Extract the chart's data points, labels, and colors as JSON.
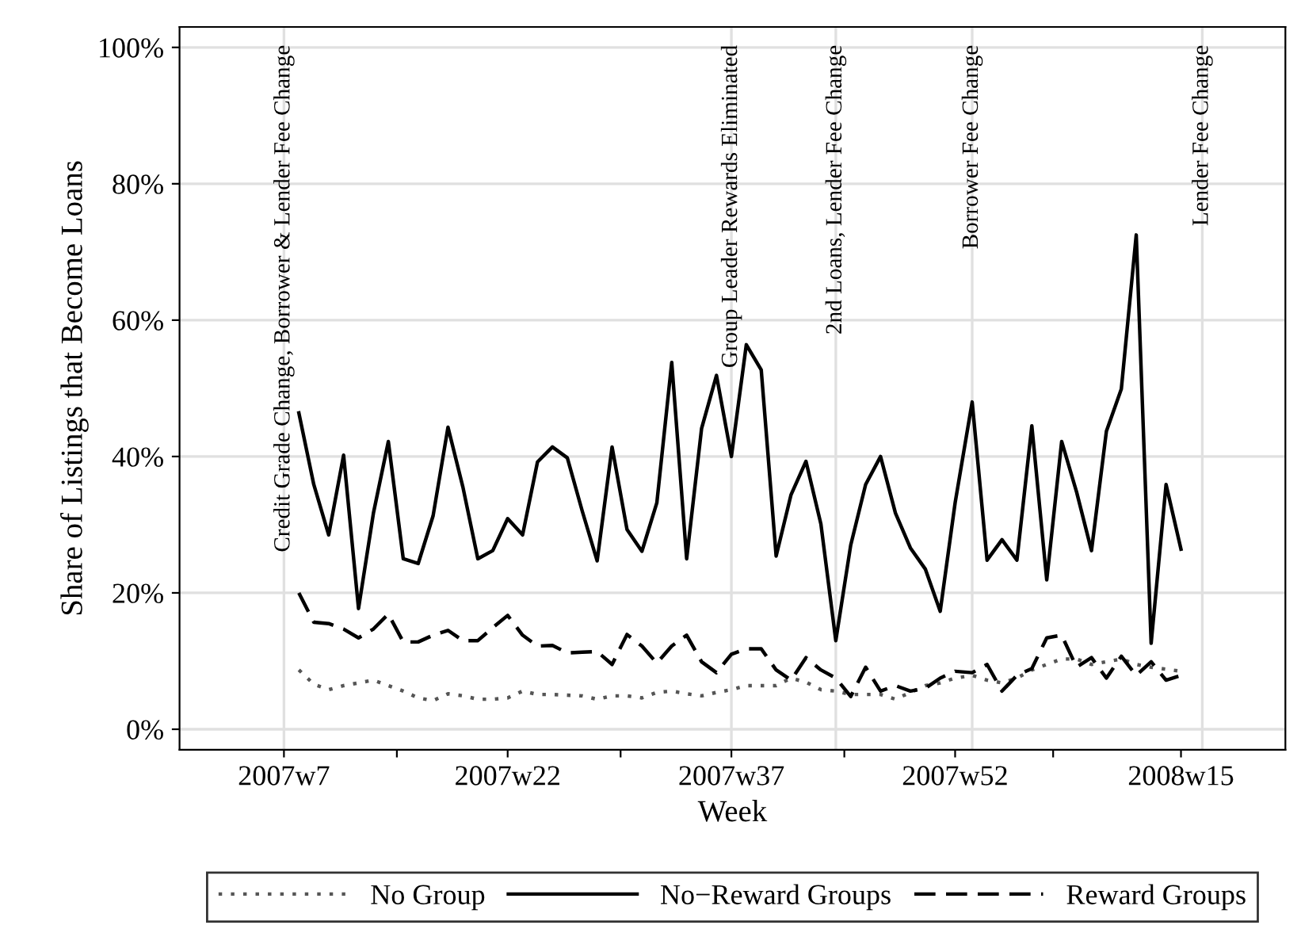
{
  "chart_data": {
    "type": "line",
    "xlabel": "Week",
    "ylabel": "Share of Listings that Become Loans",
    "x": [
      "2007-02-19",
      "2007-02-26",
      "2007-03-05",
      "2007-03-12",
      "2007-03-19",
      "2007-03-26",
      "2007-04-02",
      "2007-04-09",
      "2007-04-16",
      "2007-04-23",
      "2007-04-30",
      "2007-05-07",
      "2007-05-14",
      "2007-05-21",
      "2007-05-28",
      "2007-06-04",
      "2007-06-11",
      "2007-06-18",
      "2007-06-25",
      "2007-07-02",
      "2007-07-09",
      "2007-07-16",
      "2007-07-23",
      "2007-07-30",
      "2007-08-06",
      "2007-08-13",
      "2007-08-20",
      "2007-08-27",
      "2007-09-03",
      "2007-09-10",
      "2007-09-17",
      "2007-09-24",
      "2007-10-01",
      "2007-10-08",
      "2007-10-15",
      "2007-10-22",
      "2007-10-29",
      "2007-11-05",
      "2007-11-12",
      "2007-11-19",
      "2007-11-26",
      "2007-12-03",
      "2007-12-10",
      "2007-12-17",
      "2007-12-24",
      "2008-01-01",
      "2008-01-08",
      "2008-01-15",
      "2008-01-22",
      "2008-01-29",
      "2008-02-05",
      "2008-02-12",
      "2008-02-19",
      "2008-02-26",
      "2008-03-04",
      "2008-03-11",
      "2008-03-18",
      "2008-03-25",
      "2008-04-01",
      "2008-04-08"
    ],
    "series": [
      {
        "name": "No Group",
        "color": "#555555",
        "line_style": "dotted",
        "values": [
          8.7,
          6.6,
          5.8,
          6.4,
          6.8,
          7.2,
          6.4,
          5.6,
          4.6,
          4.2,
          5.2,
          4.9,
          4.4,
          4.4,
          4.6,
          5.6,
          5.1,
          5.1,
          5.0,
          4.9,
          4.4,
          4.9,
          4.9,
          4.6,
          5.4,
          5.6,
          5.2,
          4.9,
          5.4,
          5.8,
          6.4,
          6.4,
          6.4,
          7.5,
          6.9,
          5.8,
          5.6,
          5.1,
          5.1,
          5.1,
          4.4,
          5.4,
          6.4,
          6.8,
          7.5,
          7.9,
          7.2,
          6.8,
          7.5,
          8.7,
          9.5,
          10.3,
          10.3,
          9.5,
          9.9,
          10.3,
          9.5,
          9.1,
          8.8,
          8.5
        ]
      },
      {
        "name": "No−Reward Groups",
        "color": "#000000",
        "line_style": "solid",
        "values": [
          46.4,
          35.9,
          28.5,
          40.2,
          17.7,
          31.7,
          42.2,
          25.0,
          24.3,
          31.3,
          44.3,
          35.5,
          25.0,
          26.2,
          30.9,
          28.5,
          39.2,
          41.4,
          39.8,
          32.0,
          24.7,
          41.4,
          29.3,
          26.1,
          33.2,
          53.8,
          25.0,
          44.1,
          51.9,
          40.0,
          56.4,
          52.7,
          25.4,
          34.4,
          39.3,
          30.1,
          13.0,
          27.0,
          35.9,
          40.0,
          31.7,
          26.6,
          23.5,
          17.3,
          33.2,
          48.0,
          24.8,
          27.8,
          24.8,
          44.5,
          21.9,
          42.2,
          34.8,
          26.2,
          43.7,
          49.9,
          72.5,
          12.6,
          35.9,
          26.4
        ]
      },
      {
        "name": "Reward Groups",
        "color": "#000000",
        "line_style": "dashed",
        "values": [
          20.0,
          15.7,
          15.5,
          14.7,
          13.4,
          14.7,
          16.9,
          12.8,
          12.8,
          13.8,
          14.5,
          13.0,
          13.0,
          14.9,
          16.7,
          13.8,
          12.2,
          12.3,
          11.2,
          11.3,
          11.4,
          9.5,
          13.9,
          12.2,
          9.7,
          12.2,
          13.8,
          9.9,
          8.3,
          11.0,
          11.8,
          11.8,
          8.7,
          7.2,
          10.5,
          8.7,
          7.5,
          4.8,
          9.1,
          5.6,
          6.4,
          5.6,
          6.0,
          7.5,
          8.5,
          8.3,
          9.5,
          5.6,
          7.9,
          8.9,
          13.4,
          13.8,
          9.1,
          10.5,
          7.5,
          10.7,
          7.9,
          9.9,
          7.2,
          7.9
        ]
      }
    ],
    "xlim": [
      "2006-12-25",
      "2008-05-27"
    ],
    "xticks": [
      {
        "value": "2007-02-12",
        "label": "2007w7"
      },
      {
        "value": "2007-04-06",
        "label": null
      },
      {
        "value": "2007-05-28",
        "label": "2007w22"
      },
      {
        "value": "2007-07-20",
        "label": null
      },
      {
        "value": "2007-09-10",
        "label": "2007w37"
      },
      {
        "value": "2007-11-02",
        "label": null
      },
      {
        "value": "2007-12-24",
        "label": "2007w52"
      },
      {
        "value": "2008-02-08",
        "label": null
      },
      {
        "value": "2008-04-08",
        "label": "2008w15"
      }
    ],
    "ylim": [
      -3,
      103
    ],
    "yticks": [
      {
        "value": 0,
        "label": "0%"
      },
      {
        "value": 20,
        "label": "20%"
      },
      {
        "value": 40,
        "label": "40%"
      },
      {
        "value": 60,
        "label": "60%"
      },
      {
        "value": 80,
        "label": "80%"
      },
      {
        "value": 100,
        "label": "100%"
      }
    ],
    "grid": "y",
    "legend": "bottom",
    "ref_lines": [
      {
        "axis": "x",
        "value": "2007-02-12",
        "label": "Credit Grade Change, Borrower & Lender Fee Change",
        "color": "#e0e0e0"
      },
      {
        "axis": "x",
        "value": "2007-09-10",
        "label": "Group Leader Rewards Eliminated",
        "color": "#e0e0e0"
      },
      {
        "axis": "x",
        "value": "2007-10-29",
        "label": "2nd Loans, Lender Fee Change",
        "color": "#e0e0e0"
      },
      {
        "axis": "x",
        "value": "2008-01-01",
        "label": "Borrower Fee Change",
        "color": "#e0e0e0"
      },
      {
        "axis": "x",
        "value": "2008-04-18",
        "label": "Lender Fee Change",
        "color": "#e0e0e0"
      }
    ]
  }
}
